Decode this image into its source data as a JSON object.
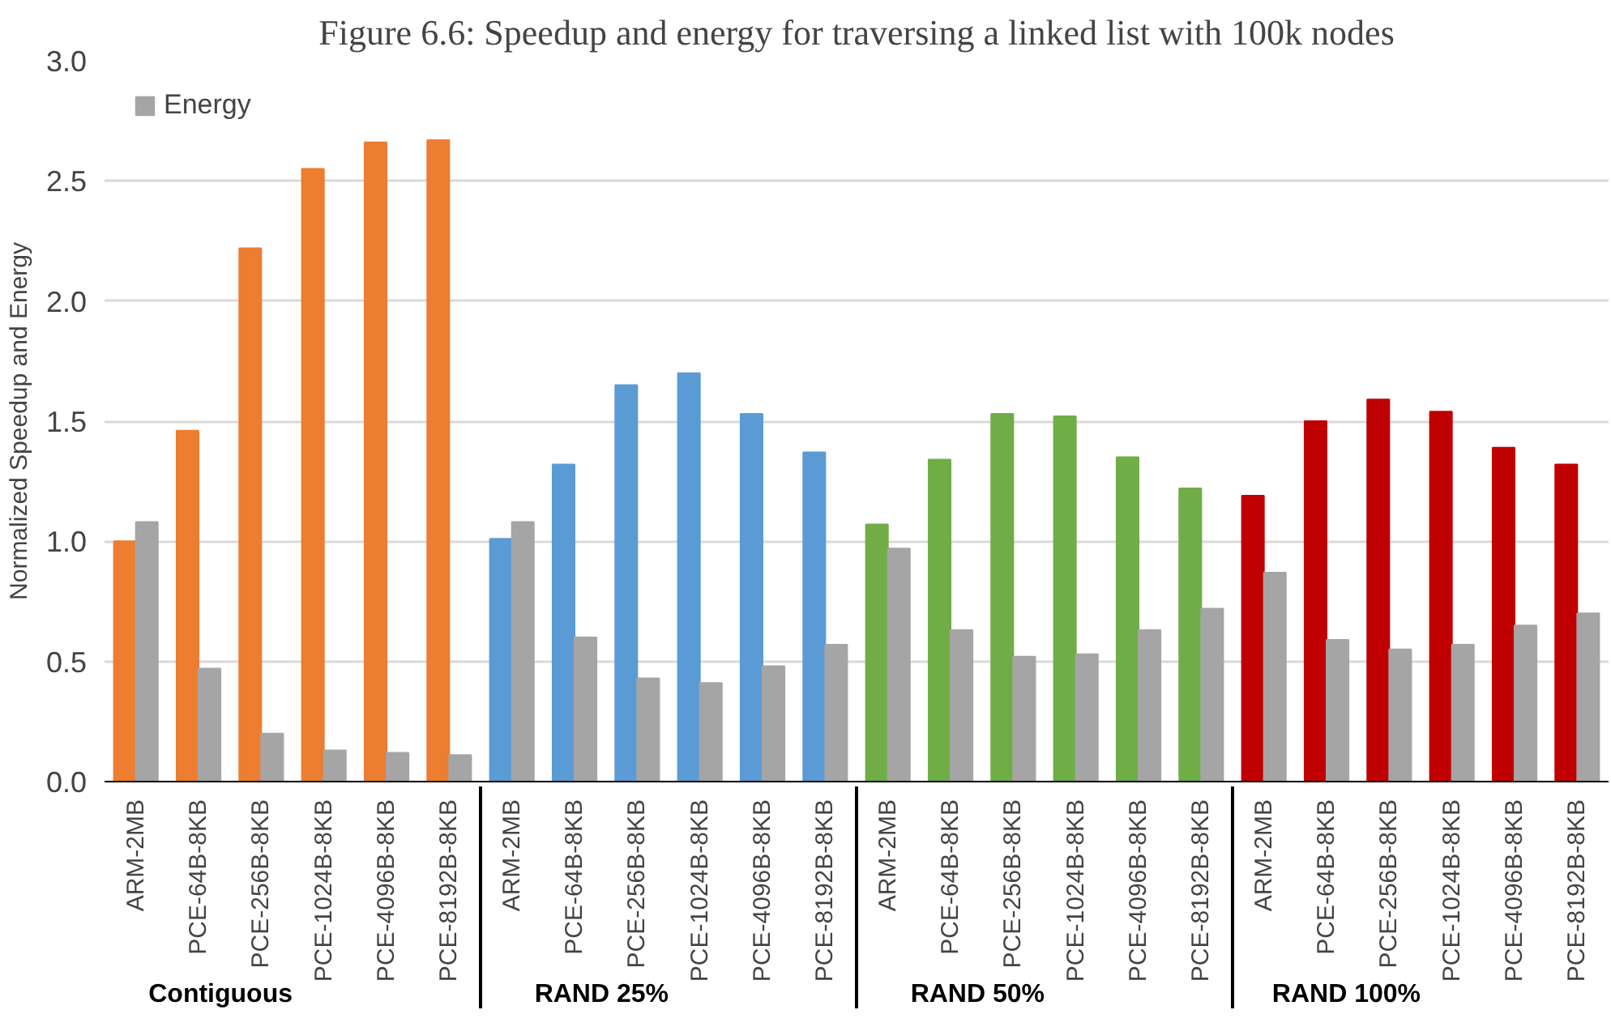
{
  "chart_data": {
    "type": "bar",
    "title": "Figure 6.6: Speedup and energy for traversing a linked list with 100k nodes",
    "ylabel": "Normalized Speedup and Energy",
    "categories": [
      "ARM-2MB",
      "PCE-64B-8KB",
      "PCE-256B-8KB",
      "PCE-1024B-8KB",
      "PCE-4096B-8KB",
      "PCE-8192B-8KB",
      "ARM-2MB",
      "PCE-64B-8KB",
      "PCE-256B-8KB",
      "PCE-1024B-8KB",
      "PCE-4096B-8KB",
      "PCE-8192B-8KB",
      "ARM-2MB",
      "PCE-64B-8KB",
      "PCE-256B-8KB",
      "PCE-1024B-8KB",
      "PCE-4096B-8KB",
      "PCE-8192B-8KB",
      "ARM-2MB",
      "PCE-64B-8KB",
      "PCE-256B-8KB",
      "PCE-1024B-8KB",
      "PCE-4096B-8KB",
      "PCE-8192B-8KB"
    ],
    "annotations": [
      "Contiguous",
      "RAND 25%",
      "RAND 50%",
      "RAND 100%"
    ],
    "series": [
      {
        "colors": [
          "#ed7d31",
          "#ed7d31",
          "#ed7d31",
          "#ed7d31",
          "#ed7d31",
          "#ed7d31",
          "#5b9bd5",
          "#5b9bd5",
          "#5b9bd5",
          "#5b9bd5",
          "#5b9bd5",
          "#5b9bd5",
          "#70ad47",
          "#70ad47",
          "#70ad47",
          "#70ad47",
          "#70ad47",
          "#70ad47",
          "#c00000",
          "#c00000",
          "#c00000",
          "#c00000",
          "#c00000",
          "#c00000"
        ],
        "values": [
          1.0,
          1.46,
          2.22,
          2.55,
          2.66,
          2.67,
          1.01,
          1.32,
          1.65,
          1.7,
          1.53,
          1.37,
          1.07,
          1.34,
          1.53,
          1.52,
          1.35,
          1.22,
          1.19,
          1.5,
          1.59,
          1.54,
          1.39,
          1.32
        ]
      },
      {
        "name": "Energy",
        "color": "#a5a5a5",
        "values": [
          1.08,
          0.47,
          0.2,
          0.13,
          0.12,
          0.11,
          1.08,
          0.6,
          0.43,
          0.41,
          0.48,
          0.57,
          0.97,
          0.63,
          0.52,
          0.53,
          0.63,
          0.72,
          0.87,
          0.59,
          0.55,
          0.57,
          0.65,
          0.7
        ]
      }
    ],
    "ylim": [
      0,
      3.0
    ],
    "yticks": [
      {
        "value": 0,
        "label": "0.0"
      },
      {
        "value": 0.5,
        "label": "0.5"
      },
      {
        "value": 1.0,
        "label": "1.0"
      },
      {
        "value": 1.5,
        "label": "1.5"
      },
      {
        "value": 2.0,
        "label": "2.0"
      },
      {
        "value": 2.5,
        "label": "2.5"
      },
      {
        "value": 3.0,
        "label": "3.0"
      }
    ],
    "grid": "y",
    "legend": "top left"
  }
}
